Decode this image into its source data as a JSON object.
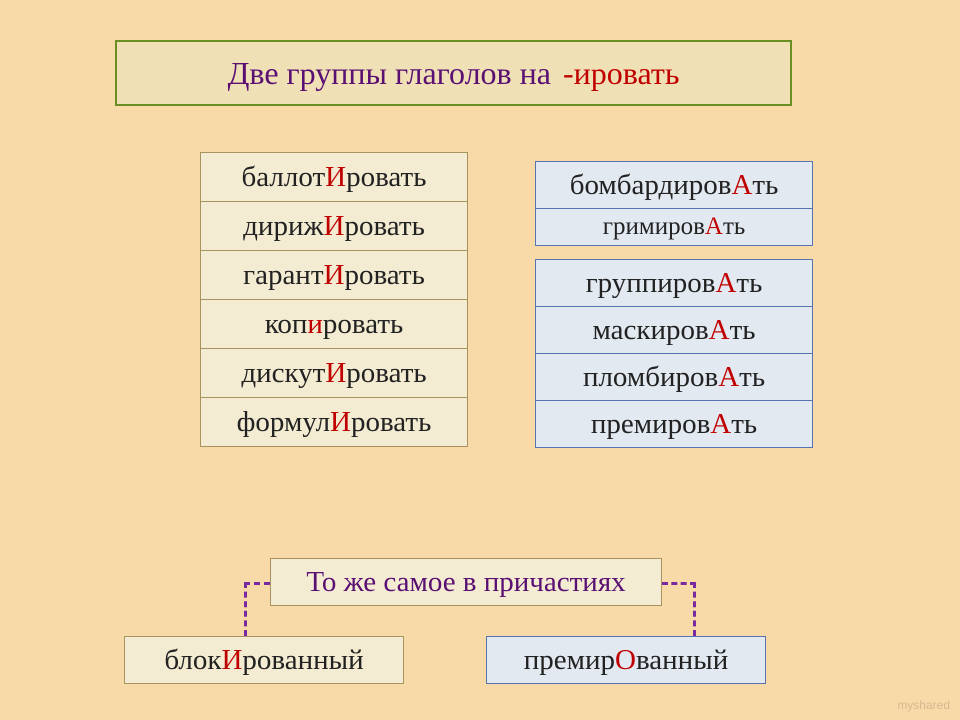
{
  "title": {
    "main": "Две группы глаголов на",
    "suffix": "-ировать"
  },
  "left_words": [
    {
      "pre": "баллот",
      "hi": "И",
      "post": "ровать"
    },
    {
      "pre": "дириж",
      "hi": "И",
      "post": "ровать"
    },
    {
      "pre": "гарант",
      "hi": "И",
      "post": "ровать"
    },
    {
      "pre": "коп",
      "hi": "и",
      "post": "ровать"
    },
    {
      "pre": "дискут",
      "hi": "И",
      "post": "ровать"
    },
    {
      "pre": "формул",
      "hi": "И",
      "post": "ровать"
    }
  ],
  "right_words": [
    {
      "pre": "бомбардиров",
      "hi": "А",
      "post": "ть",
      "size": "h50"
    },
    {
      "pre": "гримиров",
      "hi": "А",
      "post": "ть",
      "size": "h40"
    },
    {
      "gap": true
    },
    {
      "pre": "группиров",
      "hi": "А",
      "post": "ть",
      "size": "h50"
    },
    {
      "pre": "маскиров",
      "hi": "А",
      "post": "ть",
      "size": "h50"
    },
    {
      "pre": "пломбиров",
      "hi": "А",
      "post": "ть",
      "size": "h50"
    },
    {
      "pre": "премиров",
      "hi": "А",
      "post": "ть",
      "size": "h50"
    }
  ],
  "note": "То же самое в причастиях",
  "bottom_left": {
    "pre": "блок",
    "hi": "И",
    "post": "рованный"
  },
  "bottom_right": {
    "pre": "премир",
    "hi": "О",
    "post": "ванный"
  },
  "watermark": "myshared",
  "colors": {
    "page_bg": "#f8d9a8",
    "beige_fill": "#f4ecd2",
    "beige_border": "#a8935f",
    "blue_fill": "#e3e9f1",
    "blue_border": "#5873b0",
    "title_border": "#6b8e23",
    "title_fill": "#f0e0b6",
    "purple": "#5a0f72",
    "red": "#c00000",
    "connector": "#7a2aa0"
  }
}
